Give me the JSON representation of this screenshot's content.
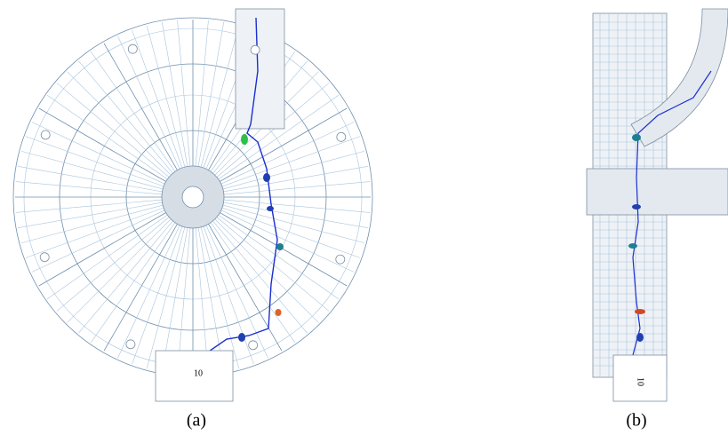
{
  "panels": [
    {
      "label": "(a)",
      "box_label": "10"
    },
    {
      "label": "(b)",
      "box_label": "10"
    }
  ]
}
